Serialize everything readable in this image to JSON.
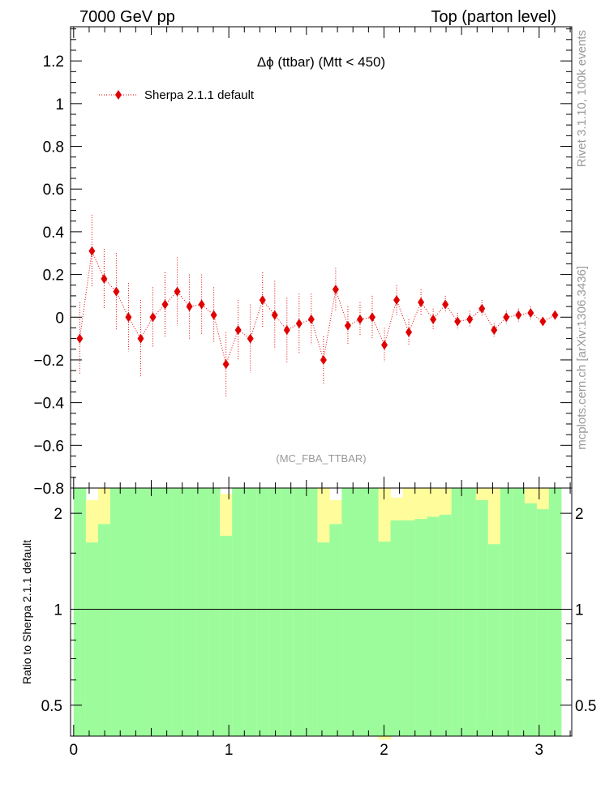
{
  "header": {
    "left_label": "7000 GeV pp",
    "right_label": "Top (parton level)"
  },
  "side_labels": {
    "rivet": "Rivet 3.1.10,  100k events",
    "source": "mcplots.cern.ch [arXiv:1306.3436]"
  },
  "colors": {
    "data_marker": "#e00000",
    "band_inner": "#9cfc9c",
    "band_outer": "#fffc9c",
    "axis": "#000000",
    "watermark": "#999999"
  },
  "chart_data": [
    {
      "id": "main",
      "type": "scatter",
      "title": "Δϕ (ttbar) (Mtt < 450)",
      "watermark": "(MC_FBA_TTBAR)",
      "xlabel": "",
      "ylabel": "",
      "xlim": [
        -0.02,
        3.21
      ],
      "ylim": [
        -0.8,
        1.36
      ],
      "yticks": [
        -0.8,
        -0.6,
        -0.4,
        -0.2,
        0,
        0.2,
        0.4,
        0.6,
        0.8,
        1,
        1.2
      ],
      "ytick_labels": [
        "−0.8",
        "−0.6",
        "−0.4",
        "−0.2",
        "0",
        "0.2",
        "0.4",
        "0.6",
        "0.8",
        "1",
        "1.2"
      ],
      "legend": {
        "position": "top-left",
        "entries": [
          "Sherpa 2.1.1 default"
        ]
      },
      "series": [
        {
          "name": "Sherpa 2.1.1 default",
          "x": [
            0.0393,
            0.1178,
            0.1963,
            0.2749,
            0.3534,
            0.432,
            0.5105,
            0.589,
            0.6676,
            0.7461,
            0.8247,
            0.9032,
            0.9817,
            1.0603,
            1.1388,
            1.2174,
            1.2959,
            1.3744,
            1.453,
            1.5315,
            1.6101,
            1.6886,
            1.7671,
            1.8457,
            1.9242,
            2.0028,
            2.0813,
            2.1598,
            2.2384,
            2.3169,
            2.3955,
            2.474,
            2.5525,
            2.6311,
            2.7096,
            2.7882,
            2.8667,
            2.9452,
            3.0238,
            3.1023
          ],
          "y": [
            -0.1,
            0.31,
            0.18,
            0.12,
            0.0,
            -0.1,
            0.0,
            0.06,
            0.12,
            0.05,
            0.06,
            0.01,
            -0.22,
            -0.06,
            -0.1,
            0.08,
            0.01,
            -0.06,
            -0.03,
            -0.01,
            -0.2,
            0.13,
            -0.04,
            -0.01,
            0.0,
            -0.13,
            0.08,
            -0.07,
            0.07,
            -0.01,
            0.06,
            -0.02,
            -0.01,
            0.04,
            -0.06,
            0.0,
            0.01,
            0.02,
            -0.02,
            0.01
          ],
          "yerr": [
            0.17,
            0.17,
            0.14,
            0.18,
            0.16,
            0.18,
            0.14,
            0.15,
            0.16,
            0.15,
            0.14,
            0.13,
            0.15,
            0.14,
            0.16,
            0.13,
            0.16,
            0.15,
            0.14,
            0.12,
            0.11,
            0.1,
            0.09,
            0.08,
            0.1,
            0.08,
            0.07,
            0.06,
            0.06,
            0.05,
            0.04,
            0.04,
            0.04,
            0.04,
            0.03,
            0.03,
            0.03,
            0.03,
            0.02,
            0.02
          ]
        }
      ]
    },
    {
      "id": "ratio",
      "type": "area",
      "title": "",
      "xlabel": "",
      "ylabel": "Ratio to Sherpa 2.1.1 default",
      "yscale": "log",
      "xlim": [
        -0.02,
        3.21
      ],
      "ylim": [
        0.4,
        2.4
      ],
      "xticks": [
        0,
        1,
        2,
        3
      ],
      "xtick_labels": [
        "0",
        "1",
        "2",
        "3"
      ],
      "yticks": [
        0.5,
        1,
        2
      ],
      "ytick_labels": [
        "0.5",
        "1",
        "2"
      ],
      "bins_lo": [
        0.0,
        0.0785,
        0.1571,
        0.2356,
        0.3142,
        0.3927,
        0.4712,
        0.5498,
        0.6283,
        0.7069,
        0.7854,
        0.8639,
        0.9425,
        1.021,
        1.0996,
        1.1781,
        1.2566,
        1.3352,
        1.4137,
        1.4923,
        1.5708,
        1.6493,
        1.7279,
        1.8064,
        1.885,
        1.9635,
        2.042,
        2.1206,
        2.1991,
        2.2777,
        2.3562,
        2.4347,
        2.5133,
        2.5918,
        2.6704,
        2.7489,
        2.8274,
        2.906,
        2.9845,
        3.0631
      ],
      "bins_hi": [
        0.0785,
        0.1571,
        0.2356,
        0.3142,
        0.3927,
        0.4712,
        0.5498,
        0.6283,
        0.7069,
        0.7854,
        0.8639,
        0.9425,
        1.021,
        1.0996,
        1.1781,
        1.2566,
        1.3352,
        1.4137,
        1.4923,
        1.5708,
        1.6493,
        1.7279,
        1.8064,
        1.885,
        1.9635,
        2.042,
        2.1206,
        2.1991,
        2.2777,
        2.3562,
        2.4347,
        2.5133,
        2.5918,
        2.6704,
        2.7489,
        2.8274,
        2.906,
        2.9845,
        3.0631,
        3.1416
      ],
      "outer_lo": [
        0.4,
        0.43,
        0.4,
        0.4,
        0.4,
        0.4,
        0.4,
        0.4,
        0.4,
        0.4,
        0.4,
        0.4,
        0.4,
        0.4,
        0.4,
        0.4,
        0.4,
        0.4,
        0.4,
        0.4,
        0.41,
        0.4,
        0.4,
        0.4,
        0.4,
        0.39,
        0.4,
        0.4,
        0.4,
        0.4,
        0.4,
        0.4,
        0.4,
        0.4,
        0.46,
        0.4,
        0.4,
        0.4,
        0.4,
        0.4
      ],
      "outer_hi": [
        2.4,
        2.2,
        2.4,
        2.4,
        2.4,
        2.4,
        2.4,
        2.4,
        2.36,
        2.4,
        2.4,
        2.4,
        2.3,
        2.4,
        2.4,
        2.4,
        2.4,
        2.4,
        2.4,
        2.4,
        2.4,
        2.2,
        2.4,
        2.4,
        2.4,
        2.4,
        2.24,
        2.4,
        2.4,
        2.4,
        2.4,
        2.4,
        2.4,
        2.4,
        2.4,
        2.22,
        2.4,
        2.4,
        2.4,
        2.4
      ],
      "inner_lo": [
        0.4,
        0.4,
        0.4,
        0.4,
        0.4,
        0.4,
        0.4,
        0.4,
        0.4,
        0.4,
        0.4,
        0.4,
        0.4,
        0.4,
        0.4,
        0.4,
        0.4,
        0.4,
        0.4,
        0.4,
        0.4,
        0.4,
        0.4,
        0.4,
        0.4,
        0.4,
        0.4,
        0.4,
        0.4,
        0.4,
        0.4,
        0.4,
        0.4,
        0.4,
        0.4,
        0.4,
        0.4,
        0.4,
        0.4,
        0.4
      ],
      "inner_hi": [
        2.4,
        1.62,
        1.85,
        2.4,
        2.4,
        2.4,
        2.4,
        2.4,
        2.4,
        2.4,
        2.4,
        2.4,
        1.7,
        2.4,
        2.4,
        2.4,
        2.4,
        2.4,
        2.4,
        2.4,
        1.62,
        1.85,
        2.4,
        2.4,
        2.4,
        1.63,
        1.9,
        1.9,
        1.92,
        1.95,
        1.98,
        2.4,
        2.4,
        2.2,
        1.6,
        2.4,
        2.4,
        2.15,
        2.06,
        2.4
      ]
    }
  ]
}
